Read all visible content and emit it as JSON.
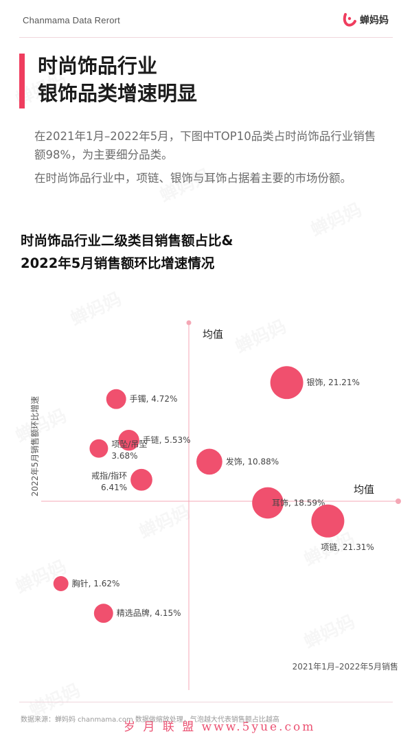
{
  "header": {
    "brand_text": "Chanmama Data Rerort",
    "logo_text": "蝉妈妈",
    "accent_color": "#ef3d5e"
  },
  "title": {
    "line1": "时尚饰品行业",
    "line2": "银饰品类增速明显"
  },
  "intro": {
    "p1": "在2021年1月–2022年5月，下图中TOP10品类占时尚饰品行业销售额98%，为主要细分品类。",
    "p2": "在时尚饰品行业中，项链、银饰与耳饰占据着主要的市场份额。"
  },
  "chart_title": {
    "line1": "时尚饰品行业二级类目销售额占比&",
    "line2": "2022年5月销售额环比增速情况"
  },
  "chart_data": {
    "type": "scatter",
    "subtype": "bubble",
    "xlabel": "2021年1月–2022年5月销售",
    "ylabel": "2022年5月销售额环比增速",
    "mean_label_x_axis": "均值",
    "mean_label_y_axis": "均值",
    "grid": false,
    "bubble_color": "#f0506e",
    "axis_color": "#f4a7b5",
    "note": "relative positions only; axes have no numeric ticks",
    "points": [
      {
        "name": "银饰",
        "share": "21.21%",
        "x": 0.62,
        "y": 0.72,
        "size": 21.21
      },
      {
        "name": "手镯",
        "share": "4.72%",
        "x": -0.46,
        "y": 0.62,
        "size": 4.72
      },
      {
        "name": "手链",
        "share": "5.53%",
        "x": -0.38,
        "y": 0.37,
        "size": 5.53
      },
      {
        "name": "项坠/吊坠",
        "share": "3.68%",
        "x": -0.57,
        "y": 0.32,
        "size": 3.68
      },
      {
        "name": "发饰",
        "share": "10.88%",
        "x": 0.13,
        "y": 0.24,
        "size": 10.88
      },
      {
        "name": "戒指/指环",
        "share": "6.41%",
        "x": -0.3,
        "y": 0.13,
        "size": 6.41
      },
      {
        "name": "耳饰",
        "share": "18.59%",
        "x": 0.5,
        "y": -0.01,
        "size": 18.59
      },
      {
        "name": "项链",
        "share": "21.31%",
        "x": 0.88,
        "y": -0.12,
        "size": 21.31
      },
      {
        "name": "胸针",
        "share": "1.62%",
        "x": -0.81,
        "y": -0.5,
        "size": 1.62
      },
      {
        "name": "精选品牌",
        "share": "4.15%",
        "x": -0.54,
        "y": -0.68,
        "size": 4.15
      }
    ]
  },
  "footer": {
    "source_text": "数据来源：蝉妈妈 chanmama.com  数据做缩放处理，气泡越大代表销售额占比越高",
    "watermark_text": "岁 月 联 盟  www.5yue.com",
    "watermark_brand": "蝉妈妈"
  }
}
